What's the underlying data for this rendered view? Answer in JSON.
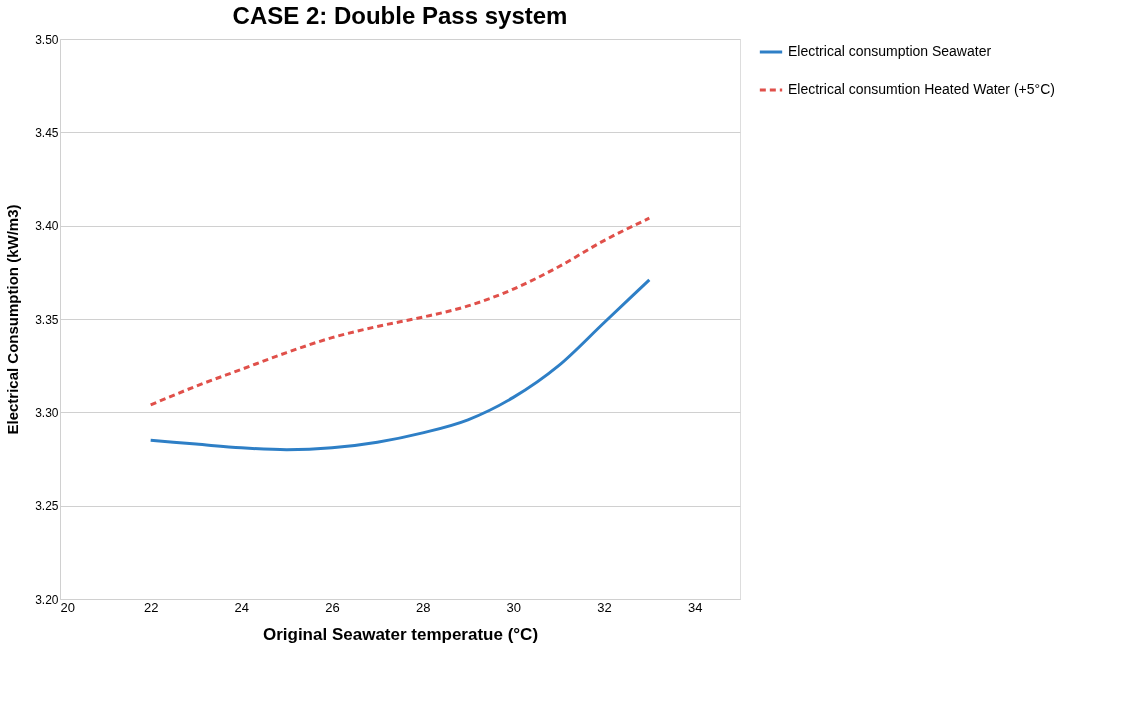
{
  "chart_data": {
    "type": "line",
    "title": "CASE 2: Double Pass system",
    "xlabel": "Original Seawater temperatue (°C)",
    "ylabel": "Electrical Consumption (kW/m3)",
    "x": [
      22,
      23,
      24,
      25,
      26,
      27,
      28,
      29,
      30,
      31,
      32,
      33
    ],
    "series": [
      {
        "name": "Electrical consumption Seawater",
        "color": "#2e7fc6",
        "line_style": "solid",
        "values": [
          3.285,
          3.283,
          3.281,
          3.28,
          3.281,
          3.284,
          3.289,
          3.296,
          3.308,
          3.325,
          3.348,
          3.371
        ]
      },
      {
        "name": "Electrical consumtion Heated Water (+5°C)",
        "color": "#e0504a",
        "line_style": "dashed",
        "values": [
          3.304,
          3.314,
          3.323,
          3.332,
          3.34,
          3.346,
          3.351,
          3.357,
          3.366,
          3.378,
          3.392,
          3.404
        ]
      }
    ],
    "xlim": [
      20,
      35
    ],
    "xticks": [
      20,
      22,
      24,
      26,
      28,
      30,
      32,
      34
    ],
    "ylim": [
      3.2,
      3.5
    ],
    "yticks": [
      {
        "value": 3.2,
        "label": "3.20"
      },
      {
        "value": 3.25,
        "label": "3.25"
      },
      {
        "value": 3.3,
        "label": "3.30"
      },
      {
        "value": 3.35,
        "label": "3.35"
      },
      {
        "value": 3.4,
        "label": "3.40"
      },
      {
        "value": 3.45,
        "label": "3.45"
      },
      {
        "value": 3.5,
        "label": "3.50"
      }
    ],
    "grid": "y",
    "legend": "right",
    "marker": "none"
  }
}
